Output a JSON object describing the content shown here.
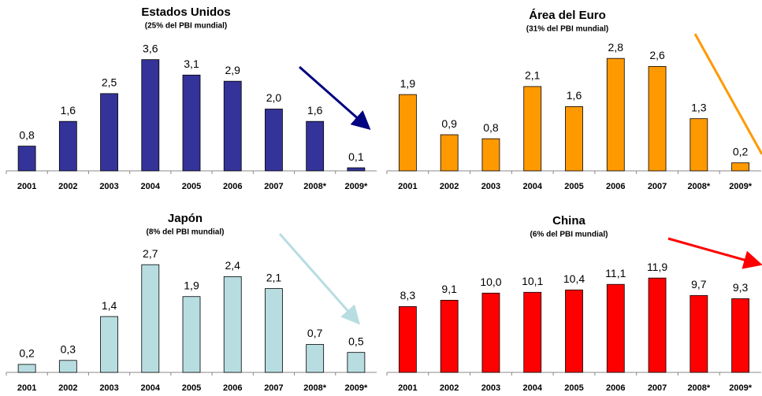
{
  "chart_data": [
    {
      "type": "bar",
      "title": "Estados Unidos",
      "subtitle": "(25% del PBI mundial)",
      "categories": [
        "2001",
        "2002",
        "2003",
        "2004",
        "2005",
        "2006",
        "2007",
        "2008*",
        "2009*"
      ],
      "values": [
        0.8,
        1.6,
        2.5,
        3.6,
        3.1,
        2.9,
        2.0,
        1.6,
        0.1
      ],
      "value_labels": [
        "0,8",
        "1,6",
        "2,5",
        "3,6",
        "3,1",
        "2,9",
        "2,0",
        "1,6",
        "0,1"
      ],
      "color": "#333399",
      "ylim": [
        0,
        4
      ]
    },
    {
      "type": "bar",
      "title": "Área del Euro",
      "subtitle": "(31% del PBI mundial)",
      "categories": [
        "2001",
        "2002",
        "2003",
        "2004",
        "2005",
        "2006",
        "2007",
        "2008*",
        "2009*"
      ],
      "values": [
        1.9,
        0.9,
        0.8,
        2.1,
        1.6,
        2.8,
        2.6,
        1.3,
        0.2
      ],
      "value_labels": [
        "1,9",
        "0,9",
        "0,8",
        "2,1",
        "1,6",
        "2,8",
        "2,6",
        "1,3",
        "0,2"
      ],
      "color": "#ff9900",
      "ylim": [
        0,
        3
      ]
    },
    {
      "type": "bar",
      "title": "Japón",
      "subtitle": "(8% del PBI mundial)",
      "categories": [
        "2001",
        "2002",
        "2003",
        "2004",
        "2005",
        "2006",
        "2007",
        "2008*",
        "2009*"
      ],
      "values": [
        0.2,
        0.3,
        1.4,
        2.7,
        1.9,
        2.4,
        2.1,
        0.7,
        0.5
      ],
      "value_labels": [
        "0,2",
        "0,3",
        "1,4",
        "2,7",
        "1,9",
        "2,4",
        "2,1",
        "0,7",
        "0,5"
      ],
      "color": "#b7dde1",
      "ylim": [
        0,
        3
      ]
    },
    {
      "type": "bar",
      "title": "China",
      "subtitle": "(6% del PBI mundial)",
      "categories": [
        "2001",
        "2002",
        "2003",
        "2004",
        "2005",
        "2006",
        "2007",
        "2008*",
        "2009*"
      ],
      "values": [
        8.3,
        9.1,
        10.0,
        10.1,
        10.4,
        11.1,
        11.9,
        9.7,
        9.3
      ],
      "value_labels": [
        "8,3",
        "9,1",
        "10,0",
        "10,1",
        "10,4",
        "11,1",
        "11,9",
        "9,7",
        "9,3"
      ],
      "color": "#ff0000",
      "ylim": [
        0,
        14
      ]
    }
  ]
}
